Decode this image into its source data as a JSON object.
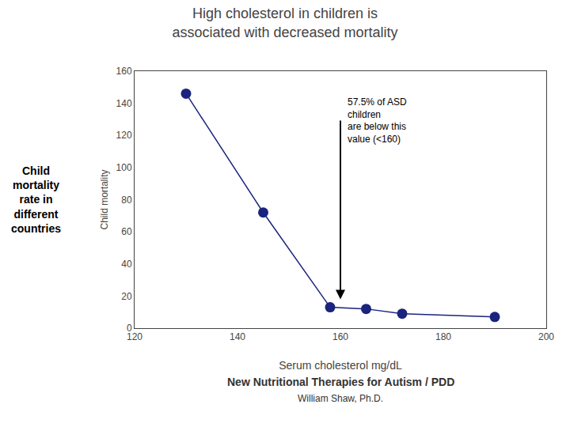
{
  "chart_data": {
    "type": "line",
    "title": "High cholesterol in children is\nassociated with decreased mortality",
    "xlabel": "Serum cholesterol mg/dL",
    "ylabel": "Child mortality",
    "x": [
      130,
      145,
      158,
      165,
      172,
      190
    ],
    "values": [
      146,
      72,
      13,
      12,
      9,
      7
    ],
    "color": "#1a237e",
    "xlim": [
      120,
      200
    ],
    "ylim": [
      0,
      160
    ],
    "xticks": [
      120,
      140,
      160,
      180,
      200
    ],
    "yticks": [
      0,
      20,
      40,
      60,
      80,
      100,
      120,
      140,
      160
    ],
    "grid": false,
    "arrow": {
      "x": 160,
      "y_start": 130,
      "y_end": 18
    },
    "annotations": [
      {
        "text": "57.5% of ASD\nchildren\nare below this\nvalue (<160)",
        "x": 161,
        "y": 145
      },
      {
        "text": "Child\nmortality\nrate in\ndifferent\ncountries"
      },
      {
        "text": "New Nutritional Therapies for Autism / PDD"
      },
      {
        "text": "William Shaw, Ph.D."
      }
    ]
  }
}
